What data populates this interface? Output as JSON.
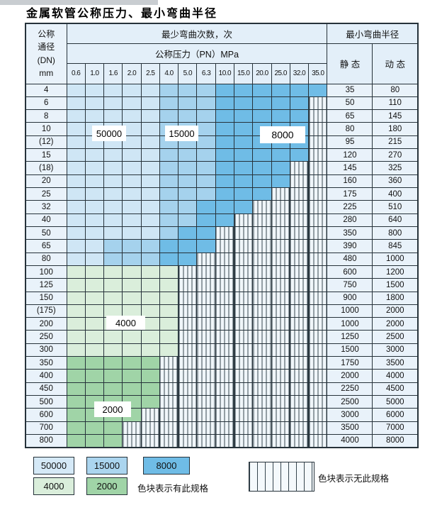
{
  "title": "金属软管公称压力、最小弯曲半径",
  "colors": {
    "L": "#cfe6f5",
    "M": "#a5d2ed",
    "D": "#6fbce6",
    "G": "#daeedb",
    "H": "#a0d4a7"
  },
  "zone_legend": {
    "L": "50000",
    "M": "15000",
    "D": "8000",
    "G": "4000",
    "H": "2000",
    "X": "no-spec"
  },
  "table": {
    "header": {
      "dn_lines": [
        "公称",
        "通径",
        "(DN)",
        "mm"
      ],
      "bend_cycles": "最少弯曲次数，次",
      "pressure": "公称压力（PN）MPa",
      "min_radius": "最小弯曲半径",
      "static": "静 态",
      "dynamic": "动 态",
      "pressures": [
        "0.6",
        "1.0",
        "1.6",
        "2.0",
        "2.5",
        "4.0",
        "5.0",
        "6.3",
        "10.0",
        "15.0",
        "20.0",
        "25.0",
        "32.0",
        "35.0"
      ]
    },
    "rows": [
      {
        "dn": "4",
        "zones": "LLLLLMMMDDDDDD",
        "static": "35",
        "dynamic": "80"
      },
      {
        "dn": "6",
        "zones": "LLLLLMMMDDDDDX",
        "static": "50",
        "dynamic": "110"
      },
      {
        "dn": "8",
        "zones": "LLLLLMMMDDDDDX",
        "static": "65",
        "dynamic": "145"
      },
      {
        "dn": "10",
        "zones": "LLLLLMMMDDDDDX",
        "static": "80",
        "dynamic": "180"
      },
      {
        "dn": "(12)",
        "zones": "LLLLLMMMDDDDDX",
        "static": "95",
        "dynamic": "215"
      },
      {
        "dn": "15",
        "zones": "LLLLLMMMDDDDDX",
        "static": "120",
        "dynamic": "270"
      },
      {
        "dn": "(18)",
        "zones": "LLLLLMMMDDDDXX",
        "static": "145",
        "dynamic": "325"
      },
      {
        "dn": "20",
        "zones": "LLLLLMMMDDDDXX",
        "static": "160",
        "dynamic": "360"
      },
      {
        "dn": "25",
        "zones": "LLLLLMMMDDDXXX",
        "static": "175",
        "dynamic": "400"
      },
      {
        "dn": "32",
        "zones": "LLLLLMMDDDXXXX",
        "static": "225",
        "dynamic": "510"
      },
      {
        "dn": "40",
        "zones": "LLLLLMMDDXXXXX",
        "static": "280",
        "dynamic": "640"
      },
      {
        "dn": "50",
        "zones": "LLLLLMDDXXXXXX",
        "static": "350",
        "dynamic": "800"
      },
      {
        "dn": "65",
        "zones": "LLMMMDDDXXXXXX",
        "static": "390",
        "dynamic": "845"
      },
      {
        "dn": "80",
        "zones": "LLMMMDDXXXXXXX",
        "static": "480",
        "dynamic": "1000"
      },
      {
        "dn": "100",
        "zones": "GGGGGGXXXXXXXX",
        "static": "600",
        "dynamic": "1200"
      },
      {
        "dn": "125",
        "zones": "GGGGGGXXXXXXXX",
        "static": "750",
        "dynamic": "1500"
      },
      {
        "dn": "150",
        "zones": "GGGGGGXXXXXXXX",
        "static": "900",
        "dynamic": "1800"
      },
      {
        "dn": "(175)",
        "zones": "GGGGGGXXXXXXXX",
        "static": "1000",
        "dynamic": "2000"
      },
      {
        "dn": "200",
        "zones": "GGGGGGXXXXXXXX",
        "static": "1000",
        "dynamic": "2000"
      },
      {
        "dn": "250",
        "zones": "GGGGGGXXXXXXXX",
        "static": "1250",
        "dynamic": "2500"
      },
      {
        "dn": "300",
        "zones": "GGGGGGXXXXXXXX",
        "static": "1500",
        "dynamic": "3000"
      },
      {
        "dn": "350",
        "zones": "HHHHHXXXXXXXXX",
        "static": "1750",
        "dynamic": "3500"
      },
      {
        "dn": "400",
        "zones": "HHHHHXXXXXXXXX",
        "static": "2000",
        "dynamic": "4000"
      },
      {
        "dn": "450",
        "zones": "HHHHHXXXXXXXXX",
        "static": "2250",
        "dynamic": "4500"
      },
      {
        "dn": "500",
        "zones": "HHHHHXXXXXXXXX",
        "static": "2500",
        "dynamic": "5000"
      },
      {
        "dn": "600",
        "zones": "HHHHXXXXXXXXXX",
        "static": "3000",
        "dynamic": "6000"
      },
      {
        "dn": "700",
        "zones": "HHHXXXXXXXXXXX",
        "static": "3500",
        "dynamic": "7000"
      },
      {
        "dn": "800",
        "zones": "HHHXXXXXXXXXXX",
        "static": "4000",
        "dynamic": "8000"
      }
    ]
  },
  "overlays": [
    {
      "text": "50000"
    },
    {
      "text": "15000"
    },
    {
      "text": "8000"
    },
    {
      "text": "4000"
    },
    {
      "text": "2000"
    }
  ],
  "legend": {
    "items": [
      {
        "label": "50000",
        "color": "#d5e9f7"
      },
      {
        "label": "15000",
        "color": "#abd5ef"
      },
      {
        "label": "8000",
        "color": "#6fbce6"
      },
      {
        "label": "4000",
        "color": "#daeedb"
      },
      {
        "label": "2000",
        "color": "#a0d4a7"
      }
    ],
    "has_spec_text": "色块表示有此规格",
    "no_spec_text": "色块表示无此规格"
  }
}
